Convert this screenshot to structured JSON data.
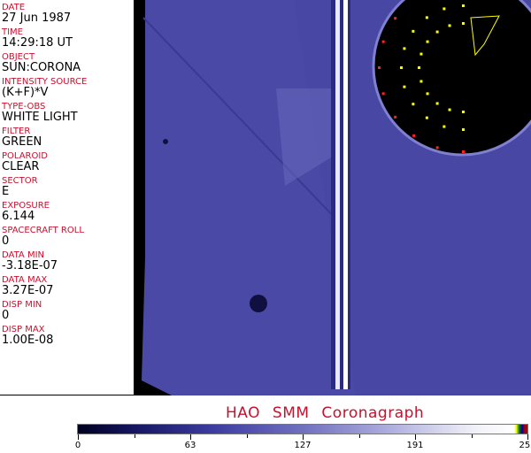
{
  "fields": [
    {
      "label": "DATE",
      "value": "27 Jun 1987"
    },
    {
      "label": "TIME",
      "value": "14:29:18 UT"
    },
    {
      "label": "OBJECT",
      "value": "SUN:CORONA"
    },
    {
      "label": "INTENSITY SOURCE",
      "value": "(K+F)*V"
    },
    {
      "label": "TYPE-OBS",
      "value": "WHITE LIGHT"
    },
    {
      "label": "FILTER",
      "value": "GREEN"
    },
    {
      "label": "POLAROID",
      "value": "CLEAR"
    },
    {
      "label": "SECTOR",
      "value": "E"
    },
    {
      "label": "EXPOSURE",
      "value": "6.144"
    },
    {
      "label": "SPACECRAFT ROLL",
      "value": "0"
    },
    {
      "label": "DATA MIN",
      "value": "-3.18E-07"
    },
    {
      "label": "DATA MAX",
      "value": "3.27E-07"
    },
    {
      "label": "DISP MIN",
      "value": "0"
    },
    {
      "label": "DISP MAX",
      "value": "1.00E-08"
    }
  ],
  "title": "HAO SMM Coronagraph",
  "colorbar": {
    "ticks": [
      "0",
      "63",
      "127",
      "191",
      "255"
    ],
    "colors": {
      "low": "#000020",
      "mid": "#7070c0",
      "high": "#ffffff"
    }
  }
}
